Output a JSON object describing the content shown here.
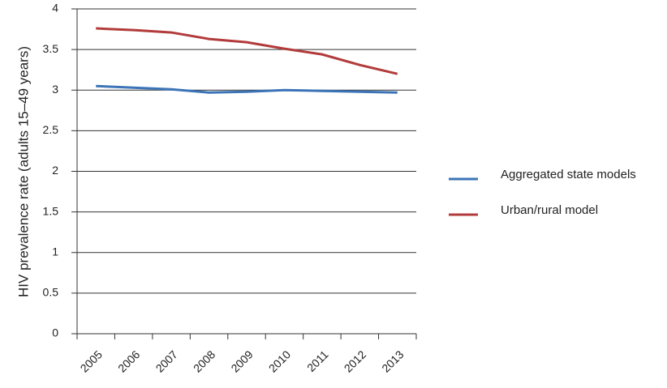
{
  "chart_data": {
    "type": "line",
    "y_label": "HIV prevalence rate (adults 15–49 years)",
    "categories": [
      "2005",
      "2006",
      "2007",
      "2008",
      "2009",
      "2010",
      "2011",
      "2012",
      "2013"
    ],
    "series": [
      {
        "name": "Aggregated state models",
        "color": "#3c74b7",
        "values": [
          3.05,
          3.03,
          3.01,
          2.97,
          2.98,
          3.0,
          2.99,
          2.98,
          2.97
        ]
      },
      {
        "name": "Urban/rural model",
        "color": "#b23b3b",
        "values": [
          3.76,
          3.74,
          3.71,
          3.63,
          3.59,
          3.51,
          3.44,
          3.31,
          3.2
        ]
      }
    ],
    "ylim": [
      0,
      4
    ],
    "yticks": [
      0,
      0.5,
      1,
      1.5,
      2,
      2.5,
      3,
      3.5,
      4
    ],
    "grid": true,
    "legend": "right"
  }
}
